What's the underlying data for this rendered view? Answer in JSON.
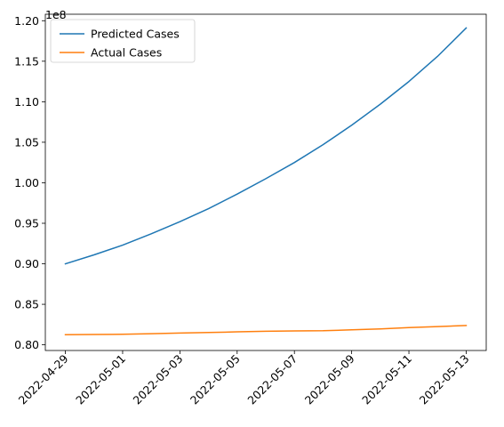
{
  "chart_data": {
    "type": "line",
    "title": "",
    "xlabel": "",
    "ylabel": "",
    "y_offset_label": "1e8",
    "legend_position": "upper-left",
    "grid": false,
    "x": [
      "2022-04-29",
      "2022-04-30",
      "2022-05-01",
      "2022-05-02",
      "2022-05-03",
      "2022-05-04",
      "2022-05-05",
      "2022-05-06",
      "2022-05-07",
      "2022-05-08",
      "2022-05-09",
      "2022-05-10",
      "2022-05-11",
      "2022-05-12",
      "2022-05-13"
    ],
    "x_ticks": [
      "2022-04-29",
      "2022-05-01",
      "2022-05-03",
      "2022-05-05",
      "2022-05-07",
      "2022-05-09",
      "2022-05-11",
      "2022-05-13"
    ],
    "y_ticks": [
      "0.80",
      "0.85",
      "0.90",
      "0.95",
      "1.00",
      "1.05",
      "1.10",
      "1.15",
      "1.20"
    ],
    "ylim": [
      0.793,
      1.208
    ],
    "series": [
      {
        "name": "Predicted Cases",
        "color": "#1f77b4",
        "values": [
          0.9,
          0.911,
          0.923,
          0.937,
          0.952,
          0.968,
          0.986,
          1.005,
          1.025,
          1.047,
          1.071,
          1.097,
          1.125,
          1.156,
          1.191
        ]
      },
      {
        "name": "Actual Cases",
        "color": "#ff7f0e",
        "values": [
          0.8125,
          0.8128,
          0.813,
          0.8137,
          0.8145,
          0.8152,
          0.816,
          0.8168,
          0.8172,
          0.8174,
          0.8185,
          0.8196,
          0.8212,
          0.8225,
          0.8238
        ]
      }
    ]
  }
}
